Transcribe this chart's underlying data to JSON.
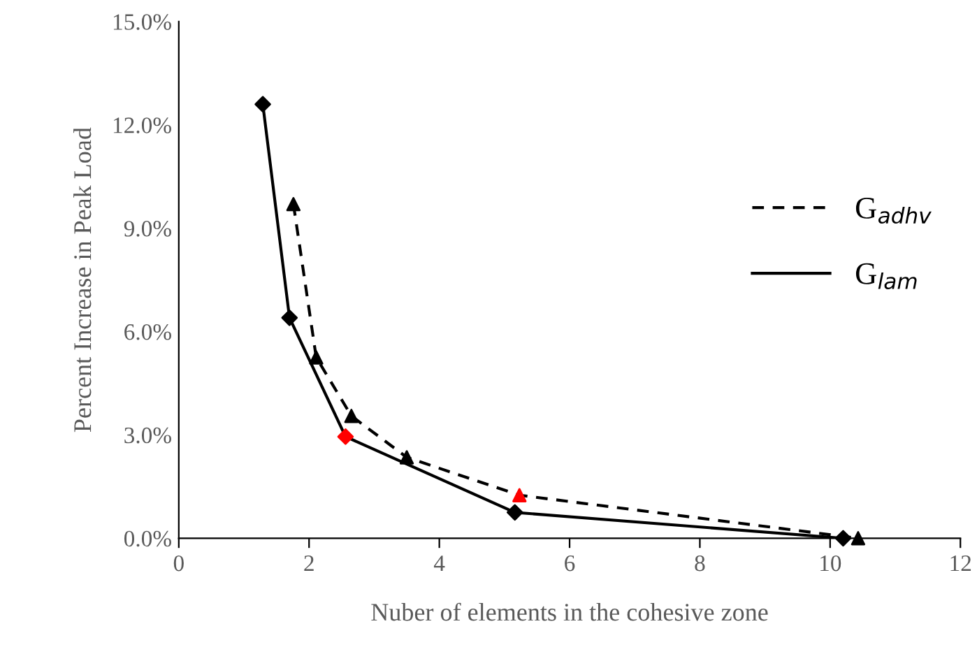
{
  "chart_data": {
    "type": "line",
    "xlabel": "Nuber of elements in the cohesive zone",
    "ylabel": "Percent Increase in Peak Load",
    "xlim": [
      0,
      12
    ],
    "xticks": [
      0,
      2,
      4,
      6,
      8,
      10,
      12
    ],
    "ylim": [
      0,
      15
    ],
    "yticks": [
      {
        "value": 0,
        "label": "0.0%"
      },
      {
        "value": 3,
        "label": "3.0%"
      },
      {
        "value": 6,
        "label": "6.0%"
      },
      {
        "value": 9,
        "label": "9.0%"
      },
      {
        "value": 12,
        "label": "12.0%"
      },
      {
        "value": 15,
        "label": "15.0%"
      }
    ],
    "grid": false,
    "legend": "right",
    "series": [
      {
        "name": "G$_{adhv}$",
        "color": "#000000",
        "line_style": "dashed",
        "marker": "triangle",
        "x": [
          1.76,
          2.11,
          2.65,
          3.5,
          5.23,
          10.43
        ],
        "values": [
          9.7,
          5.25,
          3.55,
          2.35,
          1.25,
          0
        ],
        "colors": [
          "#000000",
          "#000000",
          "#000000",
          "#000000",
          "#ff0000",
          "#000000"
        ]
      },
      {
        "name": "G$_{lam}$",
        "color": "#000000",
        "line_style": "solid",
        "marker": "diamond",
        "x": [
          1.29,
          1.7,
          2.56,
          5.16,
          10.2
        ],
        "values": [
          12.6,
          6.4,
          2.95,
          0.75,
          0
        ],
        "colors": [
          "#000000",
          "#000000",
          "#ff0000",
          "#000000",
          "#000000"
        ]
      }
    ]
  }
}
